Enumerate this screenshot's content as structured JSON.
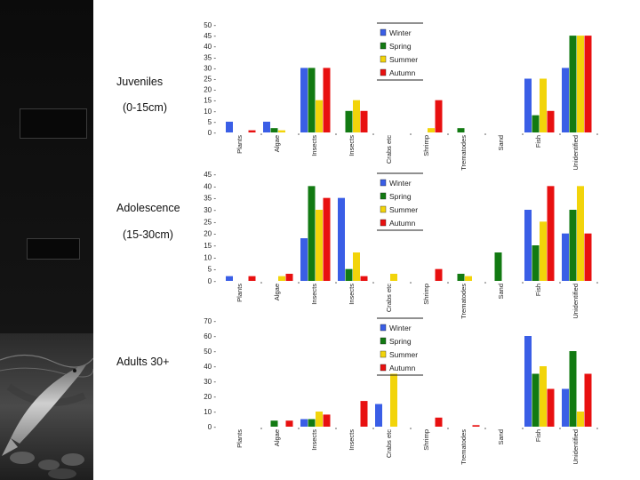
{
  "sidebar": {
    "photo_icon": "fish-photo"
  },
  "labels": {
    "juveniles": "Juveniles",
    "juveniles_size": "(0-15cm)",
    "adolescence": "Adolescence",
    "adolescence_size": "(15-30cm)",
    "adults": "Adults 30+"
  },
  "colors": {
    "Winter": "#3a5ee6",
    "Spring": "#127a12",
    "Summer": "#f2d40a",
    "Autumn": "#e81010"
  },
  "chart_data": [
    {
      "type": "bar",
      "categories": [
        "Plants",
        "Algae",
        "Insects",
        "Insects",
        "Crabs etc",
        "Shrimp",
        "Trematodes",
        "Sand",
        "Fish",
        "Unidentified"
      ],
      "ylim": [
        0,
        50
      ],
      "yticks": [
        "0",
        "5",
        "10",
        "15",
        "20",
        "25",
        "30",
        "35",
        "40",
        "45",
        "50"
      ],
      "legend": [
        "Winter",
        "Spring",
        "Summer",
        "Autumn"
      ],
      "series": [
        {
          "name": "Winter",
          "values": [
            5,
            5,
            30,
            0,
            0,
            0,
            0,
            0,
            25,
            30
          ]
        },
        {
          "name": "Spring",
          "values": [
            0,
            2,
            30,
            10,
            0,
            0,
            2,
            0,
            8,
            45
          ]
        },
        {
          "name": "Summer",
          "values": [
            0,
            1,
            15,
            15,
            0,
            2,
            0,
            0,
            25,
            45
          ]
        },
        {
          "name": "Autumn",
          "values": [
            1,
            0,
            30,
            10,
            0,
            15,
            0,
            0,
            10,
            45
          ]
        }
      ]
    },
    {
      "type": "bar",
      "categories": [
        "Plants",
        "Algae",
        "Insects",
        "Insects",
        "Crabs etc",
        "Shrimp",
        "Trematodes",
        "Sand",
        "Fish",
        "Unidentified"
      ],
      "ylim": [
        0,
        45
      ],
      "yticks": [
        "0",
        "5",
        "10",
        "15",
        "20",
        "25",
        "30",
        "35",
        "40",
        "45"
      ],
      "legend": [
        "Winter",
        "Spring",
        "Summer",
        "Autumn"
      ],
      "series": [
        {
          "name": "Winter",
          "values": [
            2,
            0,
            18,
            35,
            0,
            0,
            0,
            0,
            30,
            20
          ]
        },
        {
          "name": "Spring",
          "values": [
            0,
            0,
            40,
            5,
            0,
            0,
            3,
            12,
            15,
            30
          ]
        },
        {
          "name": "Summer",
          "values": [
            0,
            2,
            30,
            12,
            3,
            0,
            2,
            0,
            25,
            40
          ]
        },
        {
          "name": "Autumn",
          "values": [
            2,
            3,
            35,
            2,
            0,
            5,
            0,
            0,
            40,
            20
          ]
        }
      ]
    },
    {
      "type": "bar",
      "categories": [
        "Plants",
        "Algae",
        "Insects",
        "Insects",
        "Crabs etc",
        "Shrimp",
        "Trematodes",
        "Sand",
        "Fish",
        "Unidentified"
      ],
      "ylim": [
        0,
        70
      ],
      "yticks": [
        "0",
        "10",
        "20",
        "30",
        "40",
        "50",
        "60",
        "70"
      ],
      "legend": [
        "Winter",
        "Spring",
        "Summer",
        "Autumn"
      ],
      "series": [
        {
          "name": "Winter",
          "values": [
            0,
            0,
            5,
            0,
            15,
            0,
            0,
            0,
            60,
            25
          ]
        },
        {
          "name": "Spring",
          "values": [
            0,
            4,
            5,
            0,
            0,
            0,
            0,
            0,
            35,
            50
          ]
        },
        {
          "name": "Summer",
          "values": [
            0,
            0,
            10,
            0,
            35,
            0,
            0,
            0,
            40,
            10
          ]
        },
        {
          "name": "Autumn",
          "values": [
            0,
            4,
            8,
            17,
            0,
            6,
            1,
            0,
            25,
            35
          ]
        }
      ]
    }
  ]
}
